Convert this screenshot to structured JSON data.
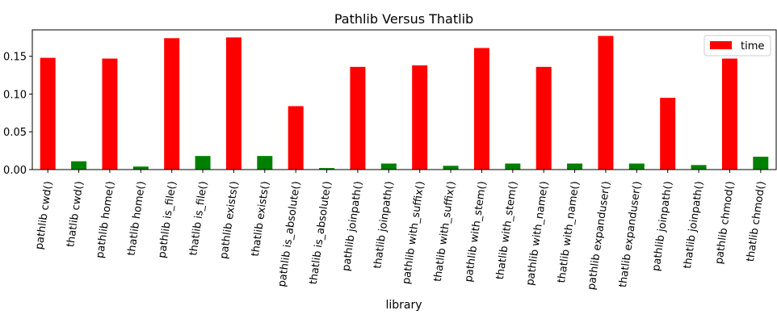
{
  "chart_data": {
    "type": "bar",
    "title": "Pathlib Versus Thatlib",
    "xlabel": "library",
    "ylabel": "",
    "ylim": [
      0,
      0.185
    ],
    "yticks": [
      "0.00",
      "0.05",
      "0.10",
      "0.15"
    ],
    "ytick_values": [
      0,
      0.05,
      0.1,
      0.15
    ],
    "grid": false,
    "legend": {
      "entries": [
        "time"
      ],
      "placement": "top-right"
    },
    "categories": [
      "pathlib cwd()",
      "thatlib cwd()",
      "pathlib home()",
      "thatlib home()",
      "pathlib is_file()",
      "thatlib is_file()",
      "pathlib exists()",
      "thatlib exists()",
      "pathlib is_absolute()",
      "thatlib is_absolute()",
      "pathlib joinpath()",
      "thatlib joinpath()",
      "pathlib with_suffix()",
      "thatlib with_suffix()",
      "pathlib with_stem()",
      "thatlib with_stem()",
      "pathlib with_name()",
      "thatlib with_name()",
      "pathlib expanduser()",
      "thatlib expanduser()",
      "pathlib joinpath()",
      "thatlib joinpath()",
      "pathlib chmod()",
      "thatlib chmod()"
    ],
    "series": [
      {
        "name": "time",
        "values": [
          0.148,
          0.011,
          0.147,
          0.004,
          0.174,
          0.018,
          0.175,
          0.018,
          0.084,
          0.002,
          0.136,
          0.008,
          0.138,
          0.005,
          0.161,
          0.008,
          0.136,
          0.008,
          0.177,
          0.008,
          0.095,
          0.006,
          0.147,
          0.017
        ],
        "colors": [
          "#ff0000",
          "#008000",
          "#ff0000",
          "#008000",
          "#ff0000",
          "#008000",
          "#ff0000",
          "#008000",
          "#ff0000",
          "#008000",
          "#ff0000",
          "#008000",
          "#ff0000",
          "#008000",
          "#ff0000",
          "#008000",
          "#ff0000",
          "#008000",
          "#ff0000",
          "#008000",
          "#ff0000",
          "#008000",
          "#ff0000",
          "#008000"
        ]
      }
    ],
    "legend_color": "#ff0000"
  }
}
